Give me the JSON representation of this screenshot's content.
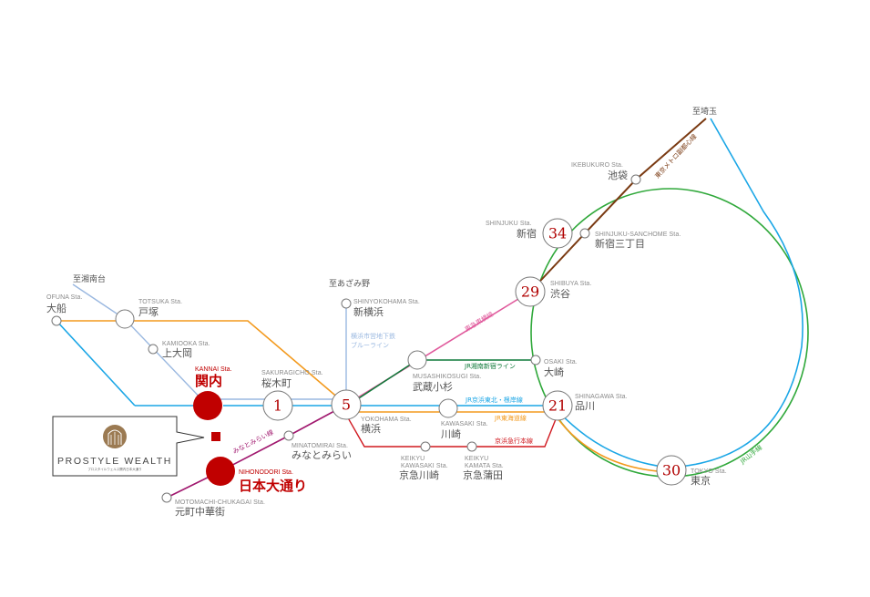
{
  "colors": {
    "yamanote": "#2fa83a",
    "keihin_tohoku": "#1aa6e6",
    "tokaido": "#f39a1e",
    "keikyu": "#d0181f",
    "toyoko": "#e05a9c",
    "shonan_shinjuku": "#0f7a3a",
    "fukutoshin": "#7a3a12",
    "minatomirai": "#a0176e",
    "blue_line": "#9ab8e0",
    "yokosuka": "#9ab8e0",
    "accent_red": "#c00000"
  },
  "stations": {
    "kannai": {
      "en": "KANNAI Sta.",
      "ja": "関内"
    },
    "nihonodori": {
      "en": "NIHONODORI Sta.",
      "ja": "日本大通り"
    },
    "sakuragicho": {
      "en": "SAKURAGICHO Sta.",
      "ja": "桜木町",
      "minutes": "1"
    },
    "yokohama": {
      "en": "YOKOHAMA Sta.",
      "ja": "横浜",
      "minutes": "5"
    },
    "minatomirai": {
      "en": "MINATOMIRAI Sta.",
      "ja": "みなとみらい"
    },
    "motomachi": {
      "en": "MOTOMACHI-CHUKAGAI Sta.",
      "ja": "元町中華街"
    },
    "ofuna": {
      "en": "OFUNA Sta.",
      "ja": "大船"
    },
    "totsuka": {
      "en": "TOTSUKA Sta.",
      "ja": "戸塚"
    },
    "kamiooka": {
      "en": "KAMIOOKA Sta.",
      "ja": "上大岡"
    },
    "shinyokohama": {
      "en": "SHINYOKOHAMA Sta.",
      "ja": "新横浜"
    },
    "musashikosugi": {
      "en": "MUSASHIKOSUGI Sta.",
      "ja": "武蔵小杉"
    },
    "kawasaki": {
      "en": "KAWASAKI Sta.",
      "ja": "川崎"
    },
    "keikyu_kawasaki_en1": "KEIKYU",
    "keikyu_kawasaki": {
      "en": "KAWASAKI Sta.",
      "ja": "京急川崎"
    },
    "keikyu_kamata_en1": "KEIKYU",
    "keikyu_kamata": {
      "en": "KAMATA Sta.",
      "ja": "京急蒲田"
    },
    "shinagawa": {
      "en": "SHINAGAWA Sta.",
      "ja": "品川",
      "minutes": "21"
    },
    "osaki": {
      "en": "OSAKI Sta.",
      "ja": "大崎"
    },
    "shibuya": {
      "en": "SHIBUYA Sta.",
      "ja": "渋谷",
      "minutes": "29"
    },
    "shinjuku": {
      "en": "SHINJUKU Sta.",
      "ja": "新宿",
      "minutes": "34"
    },
    "shinjuku_sanchome": {
      "en": "SHINJUKU-SANCHOME Sta.",
      "ja": "新宿三丁目"
    },
    "ikebukuro": {
      "en": "IKEBUKURO Sta.",
      "ja": "池袋"
    },
    "tokyo": {
      "en": "TOKYO Sta.",
      "ja": "東京",
      "minutes": "30"
    }
  },
  "destinations": {
    "shonandai": "至湘南台",
    "azamino": "至あざみ野",
    "saitama": "至埼玉"
  },
  "lines": {
    "toyoko": "東急東横線",
    "shonan_shinjuku": "JR湘南新宿ライン",
    "keihin_tohoku": "JR京浜東北・根岸線",
    "tokaido": "JR東海道線",
    "keikyu": "京浜急行本線",
    "minatomirai": "みなとみらい線",
    "blue_line_1": "横浜市営地下鉄",
    "blue_line_2": "ブルーライン",
    "fukutoshin": "東京メトロ副都心線",
    "yamanote": "JR山手線"
  },
  "logo": {
    "title": "PROSTYLE WEALTH",
    "subtitle": "プロスタイルウェルス関内日本大通り"
  }
}
